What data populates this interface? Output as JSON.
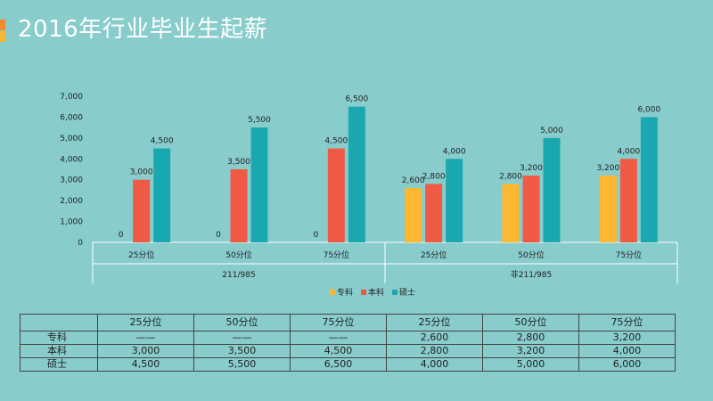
{
  "title": "2016年行业毕业生起薪",
  "colors": {
    "background": "#88cccc",
    "accent_orange": "#f28b30",
    "accent_yellow": "#f7b733",
    "series": [
      "#fdb731",
      "#ef5a45",
      "#1aa8b0"
    ]
  },
  "chart_data": {
    "type": "bar",
    "categories": [
      "25分位",
      "50分位",
      "75分位",
      "25分位",
      "50分位",
      "75分位"
    ],
    "groups": [
      {
        "label": "211/985",
        "span": 3
      },
      {
        "label": "非211/985",
        "span": 3
      }
    ],
    "series": [
      {
        "name": "专科",
        "values": [
          0,
          0,
          0,
          2600,
          2800,
          3200
        ],
        "labels": [
          "0",
          "0",
          "0",
          "2,600",
          "2,800",
          "3,200"
        ]
      },
      {
        "name": "本科",
        "values": [
          3000,
          3500,
          4500,
          2800,
          3200,
          4000
        ],
        "labels": [
          "3,000",
          "3,500",
          "4,500",
          "2,800",
          "3,200",
          "4,000"
        ]
      },
      {
        "name": "硕士",
        "values": [
          4500,
          5500,
          6500,
          4000,
          5000,
          6000
        ],
        "labels": [
          "4,500",
          "5,500",
          "6,500",
          "4,000",
          "5,000",
          "6,000"
        ]
      }
    ],
    "ylim": [
      0,
      7000
    ],
    "yticks": [
      "0",
      "1,000",
      "2,000",
      "3,000",
      "4,000",
      "5,000",
      "6,000",
      "7,000"
    ],
    "legend_position": "bottom",
    "grid": false
  },
  "table": {
    "header": [
      "",
      "25分位",
      "50分位",
      "75分位",
      "25分位",
      "50分位",
      "75分位"
    ],
    "rows": [
      [
        "专科",
        "——",
        "——",
        "——",
        "2,600",
        "2,800",
        "3,200"
      ],
      [
        "本科",
        "3,000",
        "3,500",
        "4,500",
        "2,800",
        "3,200",
        "4,000"
      ],
      [
        "硕士",
        "4,500",
        "5,500",
        "6,500",
        "4,000",
        "5,000",
        "6,000"
      ]
    ]
  }
}
